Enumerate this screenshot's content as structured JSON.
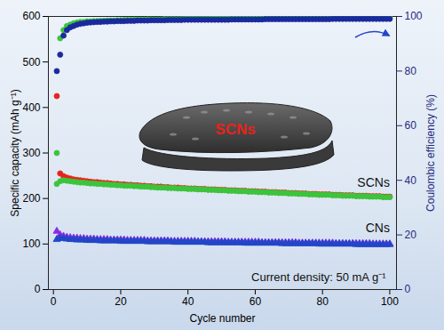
{
  "chart_data": {
    "type": "scatter",
    "x_label": "Cycle number",
    "y_label": "Specific capacity (mAh g⁻¹)",
    "y2_label": "Coulombic efficiency (%)",
    "annotations": [
      "SCNs",
      "SCNs",
      "CNs",
      "Current density: 50 mA g⁻¹"
    ],
    "xlim": [
      -1.5,
      102
    ],
    "xticks": [
      0,
      20,
      40,
      60,
      80,
      100
    ],
    "ylim": [
      0,
      600
    ],
    "yticks": [
      0,
      100,
      200,
      300,
      400,
      500,
      600
    ],
    "y2lim": [
      0,
      100
    ],
    "y2ticks": [
      0,
      20,
      40,
      60,
      80,
      100
    ],
    "grid": false,
    "x": [
      1,
      2,
      3,
      4,
      5,
      6,
      7,
      8,
      9,
      10,
      11,
      12,
      13,
      14,
      15,
      16,
      17,
      18,
      19,
      20,
      21,
      22,
      23,
      24,
      25,
      26,
      27,
      28,
      29,
      30,
      31,
      32,
      33,
      34,
      35,
      36,
      37,
      38,
      39,
      40,
      41,
      42,
      43,
      44,
      45,
      46,
      47,
      48,
      49,
      50,
      51,
      52,
      53,
      54,
      55,
      56,
      57,
      58,
      59,
      60,
      61,
      62,
      63,
      64,
      65,
      66,
      67,
      68,
      69,
      70,
      71,
      72,
      73,
      74,
      75,
      76,
      77,
      78,
      79,
      80,
      81,
      82,
      83,
      84,
      85,
      86,
      87,
      88,
      89,
      90,
      91,
      92,
      93,
      94,
      95,
      96,
      97,
      98,
      99,
      100
    ],
    "series": [
      {
        "color": "#e8231b",
        "marker": "circle",
        "values": [
          425,
          255,
          249,
          246,
          244,
          242,
          241,
          240,
          239,
          238,
          237,
          236,
          236,
          235,
          234,
          234,
          233,
          232,
          232,
          231,
          231,
          230,
          230,
          229,
          229,
          228,
          228,
          227,
          227,
          226,
          226,
          226,
          225,
          225,
          224,
          224,
          224,
          223,
          223,
          222,
          222,
          222,
          221,
          221,
          221,
          220,
          220,
          220,
          219,
          219,
          219,
          218,
          218,
          218,
          217,
          217,
          217,
          216,
          216,
          216,
          215,
          215,
          215,
          214,
          214,
          214,
          213,
          213,
          213,
          212,
          212,
          212,
          211,
          211,
          211,
          210,
          210,
          210,
          209,
          209,
          209,
          209,
          208,
          208,
          208,
          207,
          207,
          207,
          207,
          206,
          206,
          206,
          206,
          205,
          205,
          205,
          205,
          204,
          204,
          204
        ]
      },
      {
        "color": "#3cc43c",
        "marker": "circle",
        "values": [
          232,
          238,
          240,
          239,
          238,
          237,
          236,
          235,
          235,
          234,
          233,
          233,
          232,
          232,
          231,
          231,
          230,
          230,
          229,
          229,
          228,
          228,
          228,
          227,
          227,
          226,
          226,
          226,
          225,
          225,
          224,
          224,
          224,
          223,
          223,
          223,
          222,
          222,
          222,
          221,
          221,
          221,
          220,
          220,
          220,
          219,
          219,
          219,
          218,
          218,
          218,
          217,
          217,
          217,
          216,
          216,
          216,
          215,
          215,
          215,
          214,
          214,
          214,
          213,
          213,
          213,
          212,
          212,
          212,
          211,
          211,
          211,
          210,
          210,
          210,
          209,
          209,
          209,
          208,
          208,
          208,
          208,
          207,
          207,
          207,
          206,
          206,
          206,
          206,
          205,
          205,
          205,
          205,
          204,
          204,
          204,
          204,
          203,
          203,
          203
        ]
      },
      {
        "color": "#8a2be2",
        "marker": "triangle",
        "values": [
          128,
          120,
          117,
          115,
          114,
          113,
          113,
          112,
          112,
          111,
          111,
          111,
          110,
          110,
          110,
          110,
          109,
          109,
          109,
          109,
          109,
          108,
          108,
          108,
          108,
          108,
          108,
          107,
          107,
          107,
          107,
          107,
          107,
          107,
          106,
          106,
          106,
          106,
          106,
          106,
          106,
          106,
          105,
          105,
          105,
          105,
          105,
          105,
          105,
          105,
          105,
          104,
          104,
          104,
          104,
          104,
          104,
          104,
          104,
          104,
          104,
          103,
          103,
          103,
          103,
          103,
          103,
          103,
          103,
          103,
          103,
          103,
          102,
          102,
          102,
          102,
          102,
          102,
          102,
          102,
          102,
          102,
          102,
          101,
          101,
          101,
          101,
          101,
          101,
          101,
          101,
          101,
          101,
          101,
          100,
          100,
          100,
          100,
          100,
          100
        ]
      },
      {
        "color": "#2346c8",
        "marker": "triangle",
        "values": [
          110,
          113,
          112,
          111,
          110,
          110,
          109,
          109,
          109,
          108,
          108,
          108,
          108,
          107,
          107,
          107,
          107,
          107,
          107,
          106,
          106,
          106,
          106,
          106,
          106,
          106,
          106,
          105,
          105,
          105,
          105,
          105,
          105,
          105,
          105,
          104,
          104,
          104,
          104,
          104,
          104,
          104,
          104,
          104,
          104,
          103,
          103,
          103,
          103,
          103,
          103,
          103,
          103,
          103,
          103,
          103,
          102,
          102,
          102,
          102,
          102,
          102,
          102,
          102,
          102,
          102,
          102,
          101,
          101,
          101,
          101,
          101,
          101,
          101,
          101,
          101,
          101,
          101,
          100,
          100,
          100,
          100,
          100,
          100,
          100,
          100,
          100,
          100,
          100,
          99,
          99,
          99,
          99,
          99,
          99,
          99,
          99,
          99,
          99,
          99
        ]
      },
      {
        "color": "#3cc43c",
        "marker": "circle",
        "axis": "y2",
        "values": [
          50,
          92,
          95,
          96.5,
          97,
          97.5,
          97.8,
          98,
          98,
          98.2,
          98.2,
          98.3,
          98.3,
          98.4,
          98.4,
          98.5,
          98.5,
          98.5,
          98.6,
          98.6,
          98.7,
          98.7,
          98.7,
          98.8,
          98.8,
          98.8,
          98.8,
          98.9,
          98.9,
          98.9,
          98.9,
          98.9,
          99.0,
          99.0,
          99.0,
          99.0,
          99.0,
          99.0,
          99.1,
          99.1,
          99.1,
          99.1,
          99.1,
          99.1,
          99.1,
          99.1,
          99.2,
          99.2,
          99.2,
          99.2,
          99.2,
          99.2,
          99.2,
          99.2,
          99.2,
          99.2,
          99.2,
          99.3,
          99.3,
          99.3,
          99.3,
          99.3,
          99.3,
          99.3,
          99.3,
          99.3,
          99.3,
          99.3,
          99.3,
          99.3,
          99.3,
          99.3,
          99.3,
          99.3,
          99.4,
          99.4,
          99.4,
          99.4,
          99.4,
          99.4,
          99.4,
          99.4,
          99.4,
          99.4,
          99.4,
          99.4,
          99.4,
          99.4,
          99.4,
          99.4,
          99.4,
          99.4,
          99.4,
          99.4,
          99.5,
          99.5,
          99.5,
          99.5,
          99.5,
          99.5
        ]
      },
      {
        "color": "#1a2a9e",
        "marker": "circle",
        "axis": "y2",
        "values": [
          80,
          86,
          93,
          95,
          96,
          96.5,
          97,
          97.3,
          97.5,
          97.7,
          97.8,
          97.9,
          98.0,
          98.0,
          98.1,
          98.1,
          98.2,
          98.2,
          98.3,
          98.3,
          98.3,
          98.4,
          98.4,
          98.4,
          98.5,
          98.5,
          98.5,
          98.5,
          98.6,
          98.6,
          98.6,
          98.6,
          98.6,
          98.7,
          98.7,
          98.7,
          98.7,
          98.7,
          98.8,
          98.8,
          98.8,
          98.8,
          98.8,
          98.8,
          98.8,
          98.8,
          98.8,
          98.8,
          98.8,
          98.8,
          98.8,
          98.8,
          98.9,
          98.9,
          98.9,
          98.9,
          98.9,
          98.9,
          98.9,
          98.9,
          98.9,
          98.9,
          99.0,
          99.0,
          99.0,
          99.0,
          99.0,
          99.0,
          99.0,
          99.0,
          99.0,
          99.0,
          99.0,
          99.0,
          99.0,
          99.0,
          99.0,
          99.0,
          99.0,
          99.0,
          99.0,
          99.0,
          99.1,
          99.1,
          99.1,
          99.1,
          99.1,
          99.1,
          99.1,
          99.1,
          99.1,
          99.1,
          99.1,
          99.1,
          99.1,
          99.1,
          99.1,
          99.1,
          99.1,
          99.1
        ]
      }
    ]
  }
}
